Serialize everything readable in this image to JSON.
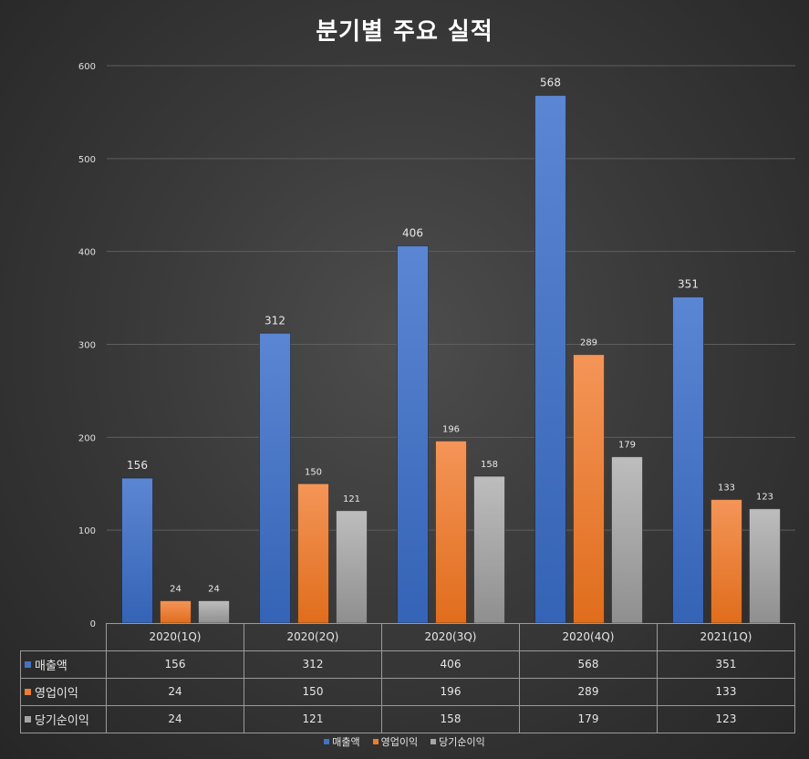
{
  "chart_data": {
    "type": "bar",
    "title": "분기별 주요 실적",
    "categories": [
      "2020(1Q)",
      "2020(2Q)",
      "2020(3Q)",
      "2020(4Q)",
      "2021(1Q)"
    ],
    "series": [
      {
        "name": "매출액",
        "values": [
          156,
          312,
          406,
          568,
          351
        ],
        "color": "#4472c4"
      },
      {
        "name": "영업이익",
        "values": [
          24,
          150,
          196,
          289,
          133
        ],
        "color": "#ed7d31"
      },
      {
        "name": "당기순이익",
        "values": [
          24,
          121,
          158,
          179,
          123
        ],
        "color": "#a5a5a5"
      }
    ],
    "ylim": [
      0,
      600
    ],
    "yticks": [
      0,
      100,
      200,
      300,
      400,
      500,
      600
    ],
    "grid": true,
    "data_table": true,
    "legend_position": "bottom"
  }
}
